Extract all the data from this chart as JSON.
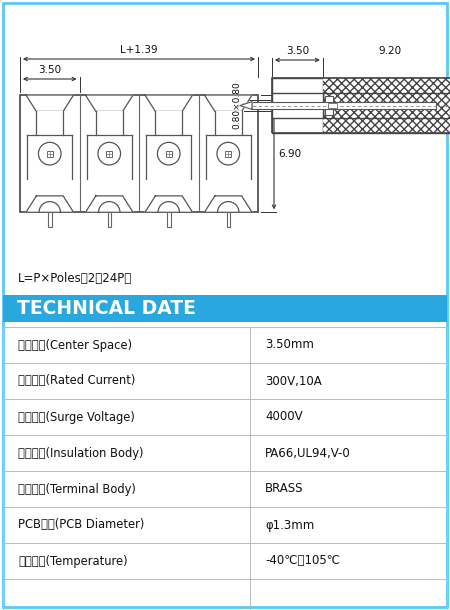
{
  "border_color": "#5bc8f5",
  "bg_color": "#ffffff",
  "tech_header_bg": "#29a8e0",
  "tech_header_text": "TECHNICAL DATE",
  "tech_header_color": "#ffffff",
  "table_rows": [
    [
      "端子間距(Center Space)",
      "3.50mm"
    ],
    [
      "額定電流(Rated Current)",
      "300V,10A"
    ],
    [
      "衝擊耐壓(Surge Voltage)",
      "4000V"
    ],
    [
      "絕縣材料(Insulation Body)",
      "PA66,UL94,V-0"
    ],
    [
      "端子材質(Terminal Body)",
      "BRASS"
    ],
    [
      "PCB孔徑(PCB Diameter)",
      "φ1.3mm"
    ],
    [
      "操作溫度(Temperature)",
      "-40℃～105℃"
    ]
  ],
  "formula_text": "L=P×Poles（2～24P）",
  "dim_L": "L+1.39",
  "dim_350_top": "3.50",
  "dim_690": "6.90",
  "dim_080x080": "0.80×0.80",
  "dim_350_right": "3.50",
  "dim_920": "9.20"
}
